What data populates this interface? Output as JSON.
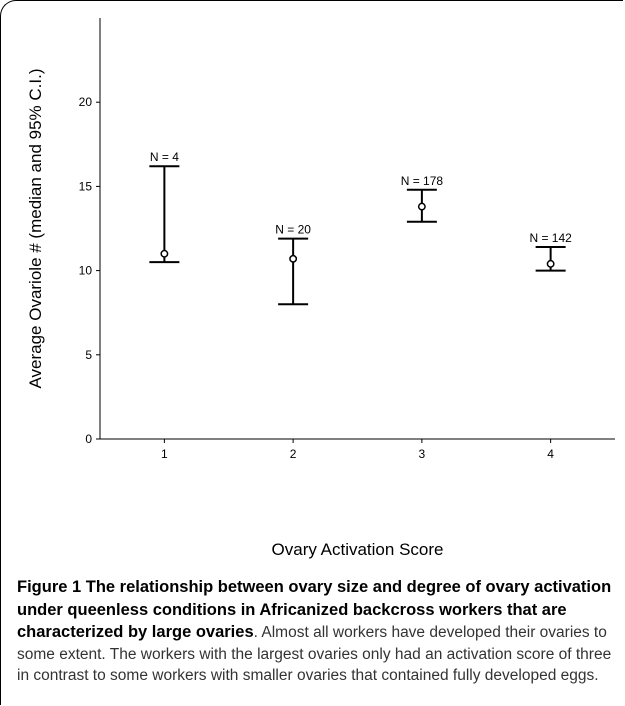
{
  "chart_data": {
    "type": "errorbar",
    "xlabel": "Ovary Activation Score",
    "ylabel": "Average Ovariole # (median and 95% C.I.)",
    "ylim": [
      0,
      25
    ],
    "xlim": [
      0.5,
      4.5
    ],
    "yticks": [
      0,
      5,
      10,
      15,
      20
    ],
    "xticks": [
      1,
      2,
      3,
      4
    ],
    "grid": false,
    "points": [
      {
        "x": 1,
        "median": 11.0,
        "lower": 10.5,
        "upper": 16.2,
        "label": "N = 4"
      },
      {
        "x": 2,
        "median": 10.7,
        "lower": 8.0,
        "upper": 11.9,
        "label": "N = 20"
      },
      {
        "x": 3,
        "median": 13.8,
        "lower": 12.9,
        "upper": 14.8,
        "label": "N = 178"
      },
      {
        "x": 4,
        "median": 10.4,
        "lower": 10.0,
        "upper": 11.4,
        "label": "N = 142"
      }
    ]
  },
  "caption": {
    "title": "Figure 1 The relationship between ovary size and degree of ovary activation under queenless conditions in Africanized backcross workers that are characterized by large ovaries",
    "title_end": ".",
    "body": "Almost all workers have developed their ovaries to some extent. The workers with the largest ovaries only had an activation score of three in contrast to some workers with smaller ovaries that contained fully developed eggs."
  }
}
